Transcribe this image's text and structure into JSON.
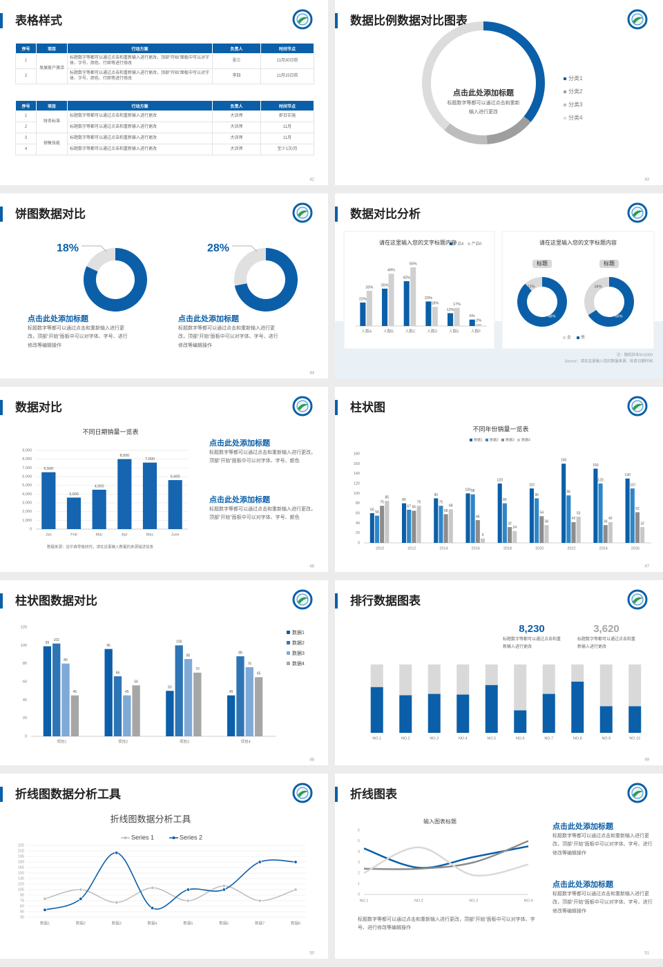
{
  "slides": [
    {
      "title": "表格样式",
      "page": "42",
      "tables": [
        {
          "header": [
            "序号",
            "项目",
            "行动方案",
            "负责人",
            "时间节点"
          ],
          "rows": [
            [
              "1",
              "发展客户激活",
              "标题数字等都可以通过点击和重新输入进行更改，顶部“开始”面板中可以对字体、字号、颜色、行距等进行修改",
              "张三",
              "11月30日前"
            ],
            [
              "2",
              null,
              "标题数字等都可以通过点击和重新输入进行更改，顶部“开始”面板中可以对字体、字号、颜色、行距等进行修改",
              "李四",
              "11月15日前"
            ]
          ]
        },
        {
          "header": [
            "序号",
            "项目",
            "行动方案",
            "负责人",
            "时间节点"
          ],
          "rows": [
            [
              "1",
              "财务标准",
              "标题数字等都可以通过点击和重新输入进行更改",
              "大训师",
              "即日实施"
            ],
            [
              "2",
              null,
              "标题数字等都可以通过点击和重新输入进行更改",
              "大训师",
              "11月"
            ],
            [
              "3",
              "销售技能",
              "标题数字等都可以通过点击和重新输入进行更改",
              "大训师",
              "11月"
            ],
            [
              "4",
              null,
              "标题数字等都可以通过点击和重新输入进行更改",
              "大训师",
              "至少1次/月"
            ]
          ]
        }
      ]
    },
    {
      "title": "数据比例数据对比图表",
      "page": "43",
      "chart_data": {
        "type": "donut",
        "title": "点击此处添加标题",
        "subtitle": "标题数字等都可以通过点击和重新输入进行更改",
        "categories": [
          "分类1",
          "分类2",
          "分类3",
          "分类4"
        ],
        "values": [
          36,
          13,
          12,
          39
        ],
        "colors": [
          "#0b5fa8",
          "#9e9e9e",
          "#bdbdbd",
          "#dcdcdc"
        ]
      }
    },
    {
      "title": "饼图数据对比",
      "page": "44",
      "items": [
        {
          "value": 18,
          "value_label": "18%",
          "heading": "点击此处添加标题",
          "text": "标题数字等都可以通过点击和重新输入进行更改，顶部“开始”面板中可以对字体、字号、进行修改等编辑操作"
        },
        {
          "value": 28,
          "value_label": "28%",
          "heading": "点击此处添加标题",
          "text": "标题数字等都可以通过点击和重新输入进行更改，顶部“开始”面板中可以对字体、字号、进行修改等编辑操作"
        }
      ]
    },
    {
      "title": "数据对比分析",
      "page": "45",
      "chart_data": {
        "type": "bar",
        "title": "请在这里输入您的文字标题内容",
        "categories": [
          "人群A",
          "人群B",
          "人群C",
          "人群D",
          "人群E",
          "人群F"
        ],
        "series": [
          {
            "name": "产品A",
            "color": "#0b5fa8",
            "values": [
              22,
              35,
              42,
              23,
              12,
              6
            ],
            "value_labels": [
              "22%",
              "35%",
              "42%",
              "23%",
              "12%",
              "6%"
            ]
          },
          {
            "name": "产品B",
            "color": "#d0d0d0",
            "values": [
              33,
              49,
              55,
              18,
              17,
              2
            ],
            "value_labels": [
              "33%",
              "49%",
              "55%",
              "18%",
              "17%",
              "2%"
            ]
          }
        ]
      },
      "donut_title": "请在这里输入您的文字标题内容",
      "donuts": [
        {
          "label": "标题",
          "value": 12,
          "value_label": "12%",
          "rest": 88,
          "rest_label": "88%"
        },
        {
          "label": "标题",
          "value": 34,
          "value_label": "34%",
          "rest": 66,
          "rest_label": "66%"
        }
      ],
      "legend": [
        "女",
        "男"
      ],
      "notes": [
        "注：随机样本N=5000",
        "Source：请在这里输入您的数据来源，检查日期时间"
      ]
    },
    {
      "title": "数据对比",
      "page": "46",
      "chart_data": {
        "type": "bar",
        "title": "不同日期销量一览表",
        "categories": [
          "Jan",
          "Feb",
          "Mar",
          "Apr",
          "May",
          "June"
        ],
        "values": [
          6500,
          3600,
          4500,
          8000,
          7600,
          5600
        ],
        "value_labels": [
          "6,500",
          "3,600",
          "4,500",
          "8,000",
          "7,600",
          "5,600"
        ],
        "color": "#1565b0",
        "ylim": [
          0,
          9000
        ],
        "yticks": [
          0,
          {
            "value": 1000,
            "label": "1,000"
          },
          {
            "value": 2000,
            "label": "2,000"
          },
          {
            "value": 3000,
            "label": "3,000"
          },
          {
            "value": 4000,
            "label": "4,000"
          },
          {
            "value": 5000,
            "label": "5,000"
          },
          {
            "value": 6000,
            "label": "6,000"
          },
          {
            "value": 7000,
            "label": "7,000"
          },
          {
            "value": 8000,
            "label": "8,000"
          },
          {
            "value": 9000,
            "label": "9,000"
          }
        ],
        "grid": true,
        "source": "数据来源：应尔森零售研究，请在这里输入数据的来源描述信息"
      },
      "blocks": [
        {
          "heading": "点击此处添加标题",
          "text": "标题数字等都可以通过点击和重新输入进行更改，顶部“开始”面板中可以对字体、字号、颜色"
        },
        {
          "heading": "点击此处添加标题",
          "text": "标题数字等都可以通过点击和重新输入进行更改，顶部“开始”面板中可以对字体、字号、颜色"
        }
      ]
    },
    {
      "title": "柱状图",
      "page": "47",
      "chart_data": {
        "type": "bar",
        "title": "不同年份销量一览表",
        "categories": [
          "2010",
          "2012",
          "2014",
          "2016",
          "2018",
          "2020",
          "2022",
          "2024",
          "2026"
        ],
        "series": [
          {
            "name": "数据1",
            "color": "#0b5fa8",
            "values": [
              60,
              80,
              90,
              100,
              120,
              110,
              160,
              150,
              130
            ]
          },
          {
            "name": "数据2",
            "color": "#2e86c8",
            "values": [
              55,
              67,
              75,
              98,
              80,
              90,
              96,
              120,
              110
            ]
          },
          {
            "name": "数据3",
            "color": "#8c8c8c",
            "values": [
              75,
              65,
              58,
              46,
              32,
              54,
              42,
              36,
              62
            ]
          },
          {
            "name": "数据4",
            "color": "#c8c8c8",
            "values": [
              85,
              75,
              68,
              9,
              24,
              36,
              53,
              42,
              32
            ]
          }
        ],
        "ylim": [
          0,
          180
        ],
        "yticks": [
          0,
          20,
          40,
          60,
          80,
          100,
          120,
          140,
          160,
          180
        ],
        "grid": false
      }
    },
    {
      "title": "柱状图数据对比",
      "page": "48",
      "chart_data": {
        "type": "bar",
        "categories": [
          "项目1",
          "项目2",
          "项目3",
          "项目4"
        ],
        "series": [
          {
            "name": "数据1",
            "color": "#0b5fa8",
            "values": [
              99,
              96,
              50,
              45
            ]
          },
          {
            "name": "数据2",
            "color": "#2e75b6",
            "values": [
              102,
              66,
              100,
              88
            ]
          },
          {
            "name": "数据3",
            "color": "#7fa9d6",
            "values": [
              80,
              45,
              85,
              76
            ]
          },
          {
            "name": "数据4",
            "color": "#a6a6a6",
            "values": [
              45,
              56,
              70,
              65
            ]
          }
        ],
        "ylim": [
          0,
          120
        ],
        "yticks": [
          0,
          20,
          40,
          60,
          80,
          100,
          120
        ],
        "grid": false
      }
    },
    {
      "title": "排行数据图表",
      "page": "49",
      "stats": [
        {
          "value": "8,230",
          "text": "标题数字等都可以通过点击和重新输入进行更改"
        },
        {
          "value": "3,620",
          "text": "标题数字等都可以通过点击和重新输入进行更改"
        }
      ],
      "chart_data": {
        "type": "stacked-bar",
        "categories": [
          "NO.1",
          "NO.2",
          "NO.3",
          "NO.4",
          "NO.5",
          "NO.6",
          "NO.7",
          "NO.8",
          "NO.9",
          "NO.10"
        ],
        "series": [
          {
            "color": "#0b5fa8",
            "values": [
              67,
              55,
              57,
              56,
              70,
              33,
              57,
              75,
              39,
              39
            ]
          },
          {
            "color": "#d9d9d9",
            "values": [
              33,
              45,
              43,
              44,
              30,
              67,
              43,
              25,
              61,
              61
            ]
          }
        ]
      }
    },
    {
      "title": "折线图数据分析工具",
      "page": "50",
      "chart_data": {
        "type": "line",
        "title": "折线图数据分析工具",
        "categories": [
          "数据1",
          "数据2",
          "数据3",
          "数据4",
          "数据5",
          "数据6",
          "数据7",
          "数据8"
        ],
        "series": [
          {
            "name": "Series 1",
            "color": "#bfbfbf",
            "values": [
              80,
              105,
              70,
              110,
              75,
              115,
              75,
              105
            ]
          },
          {
            "name": "Series 2",
            "color": "#0b5fa8",
            "values": [
              50,
              80,
              205,
              55,
              105,
              105,
              180,
              180
            ]
          }
        ],
        "ylim": [
          30,
          225
        ],
        "yticks": [
          30,
          45,
          60,
          75,
          90,
          105,
          120,
          135,
          150,
          165,
          180,
          195,
          210,
          225
        ],
        "grid": true
      }
    },
    {
      "title": "折线图表",
      "page": "51",
      "chart_data": {
        "type": "line",
        "title": "输入图表标题",
        "categories": [
          "NO.1",
          "NO.2",
          "NO.3",
          "NO.4"
        ],
        "series": [
          {
            "color": "#0b5fa8",
            "values": [
              4.3,
              2.5,
              3.5,
              4.5
            ]
          },
          {
            "color": "#8c8c8c",
            "values": [
              2.4,
              2.4,
              3.0,
              5.0
            ]
          },
          {
            "color": "#d9d9d9",
            "values": [
              2.0,
              4.4,
              1.8,
              2.8
            ]
          }
        ],
        "ylim": [
          0,
          6
        ],
        "yticks": [
          0,
          1,
          2,
          3,
          4,
          5,
          6
        ],
        "grid": false
      },
      "text": "标题数字等都可以通过点击和重新输入进行更改，顶部“开始”面板中可以对字体、字号、进行修改等编辑操作",
      "blocks": [
        {
          "heading": "点击此处添加标题",
          "text": "标题数字等都可以通过点击和重新输入进行更改，顶部“开始”面板中可以对字体、字号、进行修改等编辑操作"
        },
        {
          "heading": "点击此处添加标题",
          "text": "标题数字等都可以通过点击和重新输入进行更改，顶部“开始”面板中可以对字体、字号、进行修改等编辑操作"
        }
      ]
    }
  ]
}
